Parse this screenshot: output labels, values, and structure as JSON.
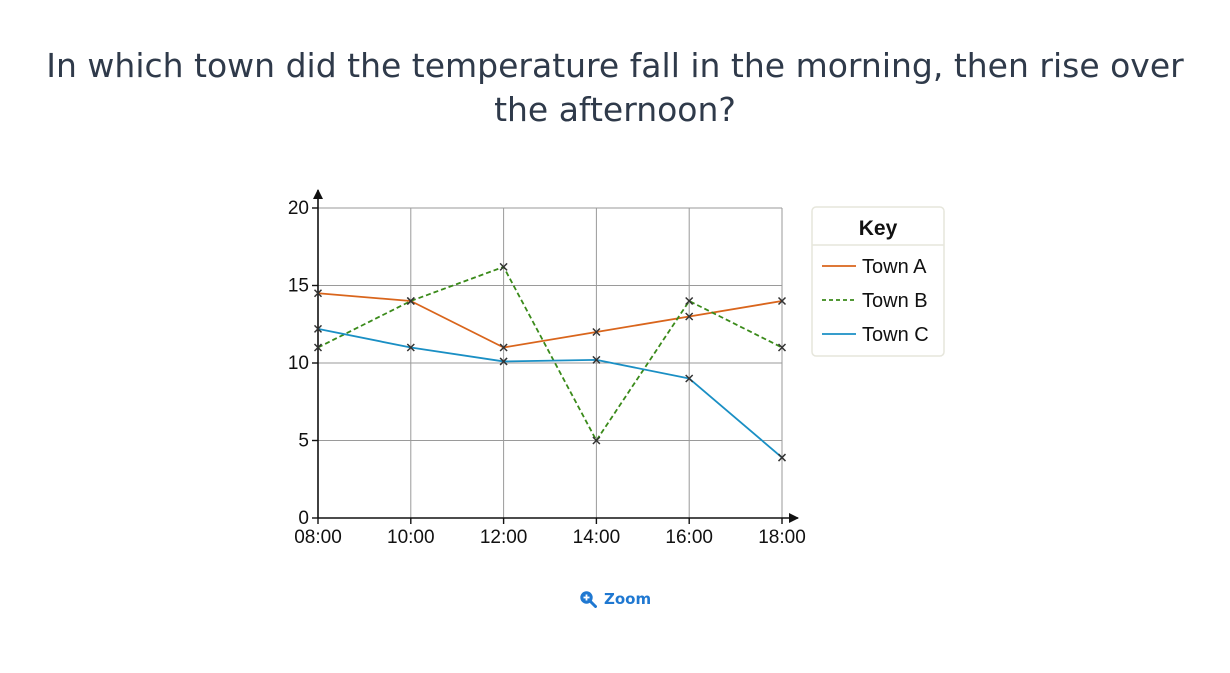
{
  "question": {
    "text": "In which town did the temperature fall in the morning, then rise over the afternoon?"
  },
  "zoom": {
    "label": "Zoom",
    "icon": "zoom-in-icon"
  },
  "chart_data": {
    "type": "line",
    "title": "",
    "xlabel": "",
    "ylabel": "",
    "categories": [
      "08:00",
      "10:00",
      "12:00",
      "14:00",
      "16:00",
      "18:00"
    ],
    "ylim": [
      0,
      20
    ],
    "yticks": [
      "0",
      "5",
      "10",
      "15",
      "20"
    ],
    "grid": true,
    "legend": {
      "title": "Key",
      "placement": "right"
    },
    "series": [
      {
        "name": "Town A",
        "values": [
          14.5,
          14,
          11,
          12,
          13,
          14
        ],
        "color": "#d9651c",
        "dashed": false
      },
      {
        "name": "Town B",
        "values": [
          11,
          14,
          16.2,
          5,
          14,
          11
        ],
        "color": "#3a8a1a",
        "dashed": true
      },
      {
        "name": "Town C",
        "values": [
          12.2,
          11,
          10.1,
          10.2,
          9,
          3.9
        ],
        "color": "#1a8fc4",
        "dashed": false
      }
    ]
  }
}
